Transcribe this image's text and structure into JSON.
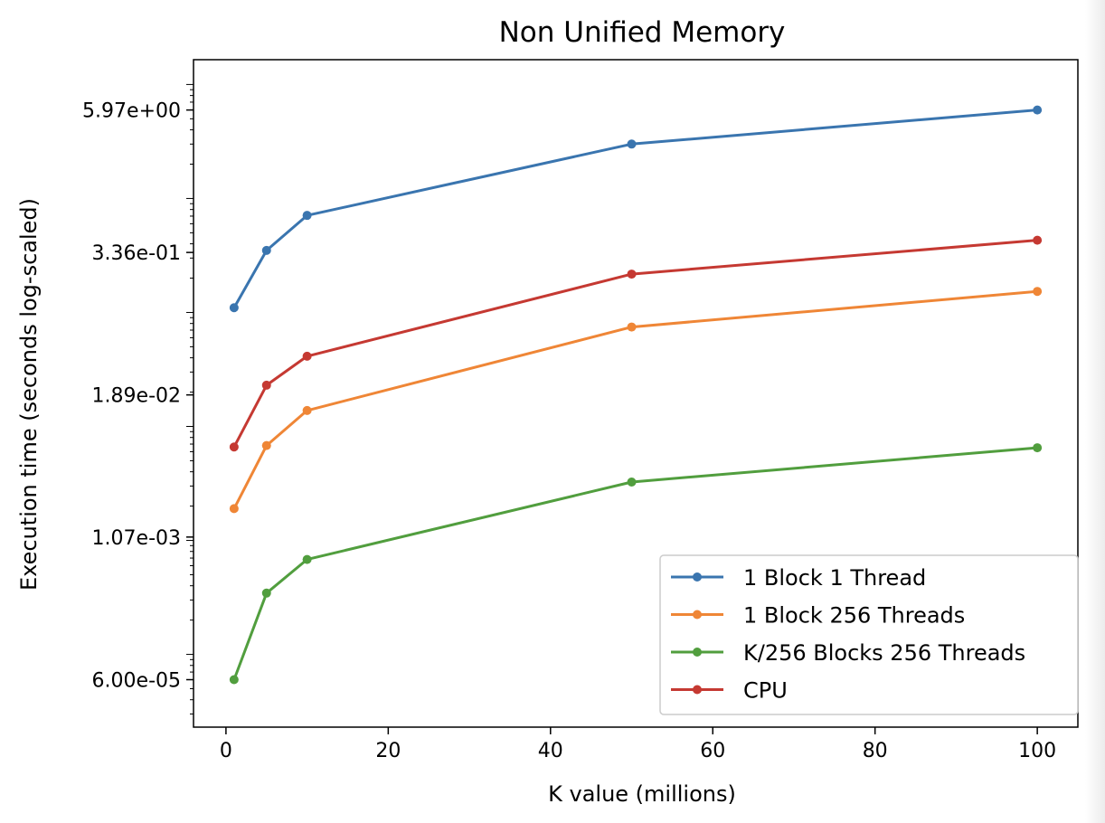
{
  "chart_data": {
    "type": "line",
    "title": "Non Unified Memory",
    "xlabel": "K value (millions)",
    "ylabel": "Execution time (seconds log-scaled)",
    "xlim": [
      -4,
      105
    ],
    "ylim": [
      2.3e-05,
      16.5
    ],
    "yscale": "log",
    "x_ticks": [
      0,
      20,
      40,
      60,
      80,
      100
    ],
    "y_ticks": [
      {
        "value": 6e-05,
        "label": "6.00e-05"
      },
      {
        "value": 0.00107,
        "label": "1.07e-03"
      },
      {
        "value": 0.0189,
        "label": "1.89e-02"
      },
      {
        "value": 0.336,
        "label": "3.36e-01"
      },
      {
        "value": 5.97,
        "label": "5.97e+00"
      }
    ],
    "x": [
      1,
      5,
      10,
      50,
      100
    ],
    "series": [
      {
        "name": "1 Block 1 Thread",
        "color": "#3a75af",
        "values": [
          0.11,
          0.35,
          0.71,
          3.0,
          5.97
        ]
      },
      {
        "name": "1 Block 256 Threads",
        "color": "#ef8636",
        "values": [
          0.0019,
          0.0068,
          0.0138,
          0.0745,
          0.153
        ]
      },
      {
        "name": "K/256 Blocks 256 Threads",
        "color": "#519e3e",
        "values": [
          6e-05,
          0.000345,
          0.00068,
          0.00325,
          0.0065
        ]
      },
      {
        "name": "CPU",
        "color": "#c53932",
        "values": [
          0.0066,
          0.023,
          0.0413,
          0.217,
          0.43
        ]
      }
    ],
    "grid": false,
    "legend_position": "lower-right"
  }
}
